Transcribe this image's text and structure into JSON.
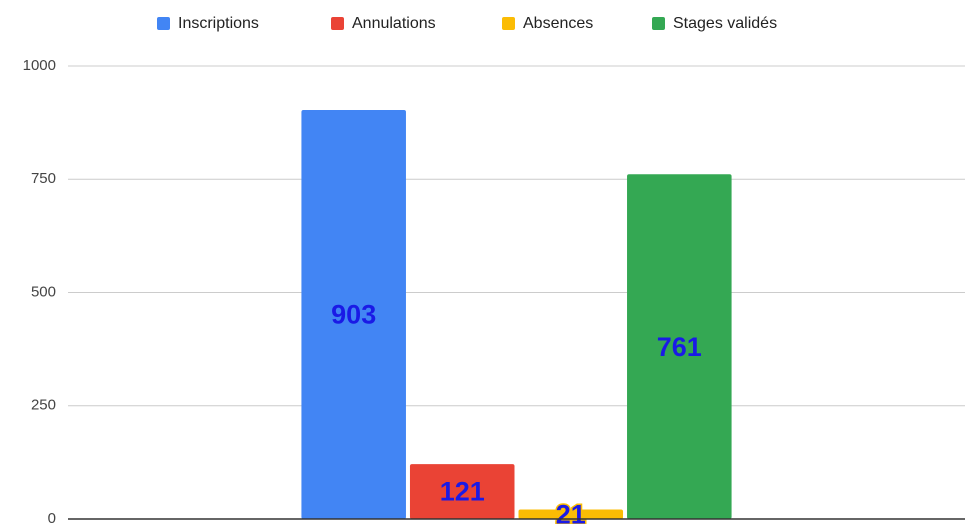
{
  "chart_data": {
    "type": "bar",
    "categories": [
      null
    ],
    "series": [
      {
        "name": "Inscriptions",
        "color": "#4285f4",
        "values": [
          903
        ]
      },
      {
        "name": "Annulations",
        "color": "#ea4335",
        "values": [
          121
        ]
      },
      {
        "name": "Absences",
        "color": "#fbbc04",
        "values": [
          21
        ]
      },
      {
        "name": "Stages validés",
        "color": "#34a853",
        "values": [
          761
        ]
      }
    ],
    "ylim": [
      0,
      1000
    ],
    "yticks": [
      0,
      250,
      500,
      750,
      1000
    ],
    "grid": true,
    "legend": "top",
    "label_color": "#1a1ae6"
  }
}
